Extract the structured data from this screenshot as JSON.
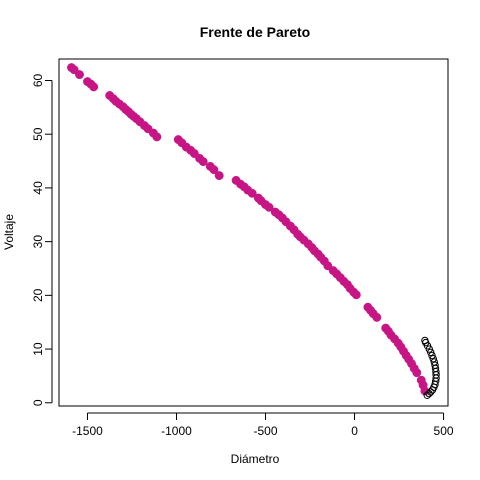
{
  "chart_data": {
    "type": "scatter",
    "title": "Frente de Pareto",
    "xlabel": "Diámetro",
    "ylabel": "Voltaje",
    "xlim": [
      -1660,
      525
    ],
    "ylim": [
      -0.6,
      64.0
    ],
    "x_ticks": [
      -1500,
      -1000,
      -500,
      0,
      500
    ],
    "x_tick_labels": [
      "-1500",
      "-1000",
      "-500",
      "0",
      "500"
    ],
    "y_ticks": [
      0,
      10,
      20,
      30,
      40,
      50,
      60
    ],
    "y_tick_labels": [
      "0",
      "10",
      "20",
      "30",
      "40",
      "50",
      "60"
    ],
    "grid": false,
    "legend": "none",
    "colors": {
      "pareto": "#c71585",
      "dominated": "#000000"
    },
    "series": [
      {
        "style": "filled-dot",
        "color": "#c71585",
        "x": [
          -1590,
          -1575,
          -1545,
          -1500,
          -1480,
          -1465,
          -1375,
          -1355,
          -1340,
          -1320,
          -1300,
          -1285,
          -1270,
          -1255,
          -1240,
          -1225,
          -1205,
          -1180,
          -1160,
          -1130,
          -1110,
          -990,
          -970,
          -945,
          -920,
          -900,
          -870,
          -850,
          -810,
          -790,
          -760,
          -665,
          -640,
          -620,
          -600,
          -575,
          -540,
          -525,
          -500,
          -480,
          -445,
          -425,
          -405,
          -385,
          -360,
          -340,
          -320,
          -305,
          -285,
          -260,
          -240,
          -225,
          -205,
          -190,
          -170,
          -150,
          -120,
          -100,
          -80,
          -60,
          -40,
          -25,
          -5,
          10,
          75,
          90,
          105,
          125,
          175,
          190,
          205,
          225,
          245,
          260,
          275,
          290,
          305,
          320,
          335,
          350,
          375,
          385,
          395
        ],
        "y": [
          62.4,
          62.0,
          61.1,
          59.8,
          59.3,
          58.8,
          57.2,
          56.6,
          56.1,
          55.6,
          55.1,
          54.6,
          54.2,
          53.7,
          53.3,
          52.9,
          52.3,
          51.6,
          51.0,
          50.2,
          49.5,
          49.0,
          48.4,
          47.6,
          47.0,
          46.4,
          45.5,
          44.9,
          44.0,
          43.4,
          42.3,
          41.4,
          40.7,
          40.2,
          39.6,
          39.0,
          38.1,
          37.6,
          36.9,
          36.4,
          35.5,
          35.0,
          34.4,
          33.7,
          32.9,
          32.2,
          31.4,
          30.9,
          30.3,
          29.6,
          28.9,
          28.3,
          27.7,
          27.1,
          26.4,
          25.5,
          24.6,
          24.0,
          23.3,
          22.6,
          22.0,
          21.3,
          20.6,
          20.1,
          17.8,
          17.2,
          16.6,
          15.9,
          13.9,
          13.3,
          12.6,
          11.9,
          11.1,
          10.4,
          9.6,
          8.8,
          8.1,
          7.3,
          6.4,
          5.6,
          4.2,
          3.3,
          2.2
        ]
      },
      {
        "style": "open-circle",
        "color": "#000000",
        "x": [
          395,
          400,
          410,
          420,
          428,
          435,
          442,
          448,
          452,
          455,
          457,
          458,
          458,
          456,
          452,
          446,
          438,
          428,
          418,
          408
        ],
        "y": [
          11.6,
          11.2,
          10.6,
          10.0,
          9.4,
          8.8,
          8.2,
          7.6,
          7.0,
          6.4,
          5.8,
          5.2,
          4.6,
          4.0,
          3.4,
          2.9,
          2.4,
          2.0,
          1.7,
          1.4
        ]
      }
    ]
  }
}
